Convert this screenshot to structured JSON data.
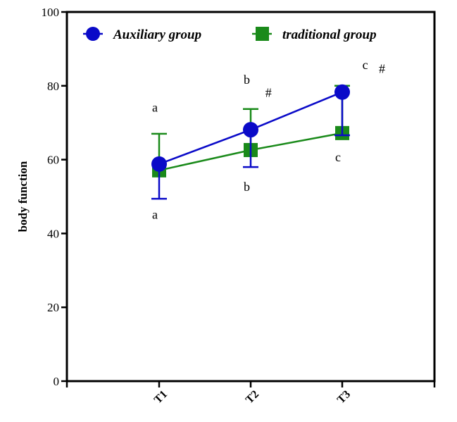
{
  "chart_data": {
    "type": "line",
    "title": "",
    "xlabel": "",
    "ylabel": "body function",
    "ylim": [
      0,
      100
    ],
    "yticks": [
      "0",
      "20",
      "40",
      "60",
      "80",
      "100"
    ],
    "categories": [
      "T1",
      "T2",
      "T3"
    ],
    "grid": false,
    "legend_position": "top",
    "series": [
      {
        "name": "Auxiliary group",
        "color": "#0a0ac8",
        "marker": "circle",
        "values": [
          58.8,
          68.1,
          78.3
        ],
        "err_low": [
          49.4,
          58.0,
          66.6
        ],
        "err_high": [
          null,
          null,
          null
        ]
      },
      {
        "name": "traditional group",
        "color": "#1a8a1a",
        "marker": "square",
        "values": [
          57.1,
          62.6,
          67.2
        ],
        "err_low": [
          null,
          null,
          null
        ],
        "err_high": [
          67.0,
          73.7,
          80.0
        ]
      }
    ],
    "annotations": [
      {
        "text": "a",
        "x": "T1",
        "y": 73
      },
      {
        "text": "a",
        "x": "T1",
        "y": 44
      },
      {
        "text": "b",
        "x": "T2",
        "y": 80.5
      },
      {
        "text": "#",
        "x": "T2",
        "y": 77,
        "dx": 0.16
      },
      {
        "text": "b",
        "x": "T2",
        "y": 51.5
      },
      {
        "text": "c",
        "x": "T3",
        "y": 84.5,
        "dx": 0.22
      },
      {
        "text": "#",
        "x": "T3",
        "y": 83.5,
        "dx": 0.4
      },
      {
        "text": "c",
        "x": "T3",
        "y": 59.5
      }
    ]
  }
}
